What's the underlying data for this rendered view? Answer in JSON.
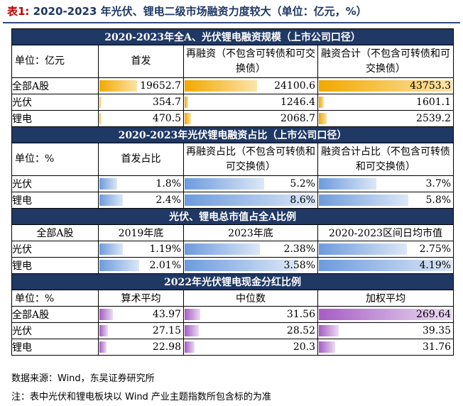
{
  "title": {
    "prefix": "表1:",
    "text": "2020-2023 年光伏、锂电二级市场融资力度较大（单位：亿元，%）"
  },
  "sec1": {
    "heading": "2020-2023年全A、光伏锂电融资规模（上市公司口径）",
    "h0": "单位：亿元",
    "h1": "首发",
    "h2": "再融资（不包含可转债和可交换债）",
    "h3": "融资合计（不包含可转债和可交换债）",
    "rows": [
      {
        "label": "全部A股",
        "v": [
          "19652.7",
          "24100.6",
          "43753.3"
        ],
        "f": [
          0.45,
          0.55,
          1.0
        ]
      },
      {
        "label": "光伏",
        "v": [
          "354.7",
          "1246.4",
          "1601.1"
        ],
        "f": [
          0.008,
          0.028,
          0.037
        ]
      },
      {
        "label": "锂电",
        "v": [
          "470.5",
          "2068.7",
          "2539.2"
        ],
        "f": [
          0.011,
          0.047,
          0.058
        ]
      }
    ]
  },
  "sec2": {
    "heading": "2020-2023年光伏锂电融资占比（上市公司口径）",
    "h0": "单位：%",
    "h1": "首发占比",
    "h2": "再融资占比（不包含可转债和可交换债）",
    "h3": "融资合计占比（不包含可转债和可交换债）",
    "rows": [
      {
        "label": "光伏",
        "v": [
          "1.8%",
          "5.2%",
          "3.7%"
        ],
        "f": [
          0.21,
          0.6,
          0.43
        ]
      },
      {
        "label": "锂电",
        "v": [
          "2.4%",
          "8.6%",
          "5.8%"
        ],
        "f": [
          0.28,
          1.0,
          0.67
        ]
      }
    ]
  },
  "sec3": {
    "heading": "光伏、锂电总市值占全A比例",
    "h0": "全部A股",
    "h1": "2019年底",
    "h2": "2023年底",
    "h3": "2020-2023区间日均市值",
    "rows": [
      {
        "label": "光伏",
        "v": [
          "1.19%",
          "2.38%",
          "2.75%"
        ],
        "f": [
          0.28,
          0.57,
          0.66
        ]
      },
      {
        "label": "锂电",
        "v": [
          "2.01%",
          "3.58%",
          "4.19%"
        ],
        "f": [
          0.48,
          0.85,
          1.0
        ]
      }
    ]
  },
  "sec4": {
    "heading": "2022年光伏锂电现金分红比例",
    "h0": "单位：%",
    "h1": "算术平均",
    "h2": "中位数",
    "h3": "加权平均",
    "rows": [
      {
        "label": "全部A股",
        "v": [
          "43.97",
          "31.56",
          "269.64"
        ],
        "f": [
          0.16,
          0.12,
          1.0
        ]
      },
      {
        "label": "光伏",
        "v": [
          "27.15",
          "28.52",
          "39.35"
        ],
        "f": [
          0.1,
          0.11,
          0.15
        ]
      },
      {
        "label": "锂电",
        "v": [
          "22.98",
          "20.3",
          "31.76"
        ],
        "f": [
          0.085,
          0.075,
          0.12
        ]
      }
    ]
  },
  "footer": {
    "source": "数据来源：Wind，东吴证券研究所",
    "note": "注：表中光伏和锂电板块以 Wind 产业主题指数所包含标的为准"
  },
  "colors": {
    "header_bg": "#1f3864",
    "orange": "#f2a800",
    "blue": "#6d9bdc",
    "purple": "#a65bc4"
  }
}
